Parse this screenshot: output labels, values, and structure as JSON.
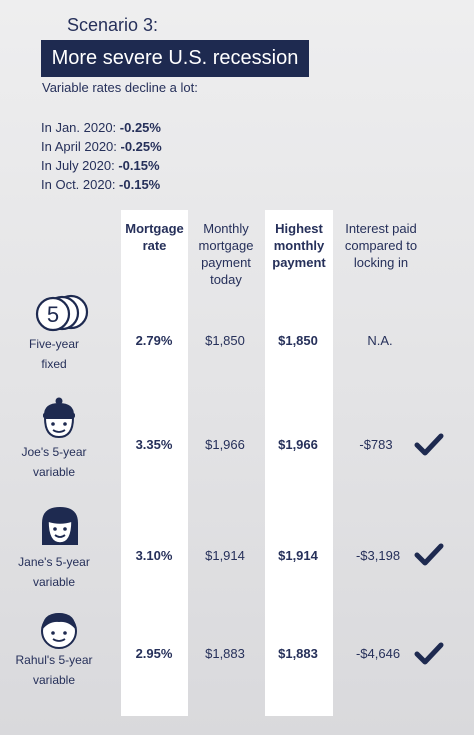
{
  "scenario_label": "Scenario 3:",
  "title": "More severe U.S. recession",
  "subtitle": "Variable rates decline a lot:",
  "rate_changes": [
    {
      "prefix": "In Jan. 2020: ",
      "value": "-0.25%"
    },
    {
      "prefix": "In April 2020: ",
      "value": "-0.25%"
    },
    {
      "prefix": "In July 2020: ",
      "value": "-0.15%"
    },
    {
      "prefix": "In Oct. 2020: ",
      "value": "-0.15%"
    }
  ],
  "headers": {
    "mortgage_rate": [
      "Mortgage",
      "rate"
    ],
    "monthly_payment": [
      "Monthly",
      "mortgage",
      "payment",
      "today"
    ],
    "highest_payment": [
      "Highest",
      "monthly",
      "payment"
    ],
    "interest_paid": [
      "Interest paid",
      "compared to",
      "locking in"
    ]
  },
  "rows": [
    {
      "label": [
        "Five-year",
        "fixed"
      ],
      "icon": "five-coin-stack-icon",
      "rate": "2.79%",
      "monthly": "$1,850",
      "highest": "$1,850",
      "interest": "N.A.",
      "check": false
    },
    {
      "label": [
        "Joe's 5-year",
        "variable"
      ],
      "icon": "joe-face-icon",
      "rate": "3.35%",
      "monthly": "$1,966",
      "highest": "$1,966",
      "interest": "-$783",
      "check": true
    },
    {
      "label": [
        "Jane's 5-year",
        "variable"
      ],
      "icon": "jane-face-icon",
      "rate": "3.10%",
      "monthly": "$1,914",
      "highest": "$1,914",
      "interest": "-$3,198",
      "check": true
    },
    {
      "label": [
        "Rahul's 5-year",
        "variable"
      ],
      "icon": "rahul-face-icon",
      "rate": "2.95%",
      "monthly": "$1,883",
      "highest": "$1,883",
      "interest": "-$4,646",
      "check": true
    }
  ],
  "five_icon_text": "5",
  "colors": {
    "navy": "#1e2a50",
    "text": "#26305a",
    "background": "#e6e6e8",
    "highlight_column": "#ffffff"
  }
}
